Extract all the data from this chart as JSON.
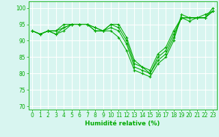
{
  "title": "",
  "xlabel": "Humidité relative (%)",
  "background_color": "#d8f5f0",
  "grid_color": "#ffffff",
  "line_color": "#00aa00",
  "marker": "+",
  "xlim": [
    -0.5,
    23.5
  ],
  "ylim": [
    69,
    102
  ],
  "yticks": [
    70,
    75,
    80,
    85,
    90,
    95,
    100
  ],
  "xticks": [
    0,
    1,
    2,
    3,
    4,
    5,
    6,
    7,
    8,
    9,
    10,
    11,
    12,
    13,
    14,
    15,
    16,
    17,
    18,
    19,
    20,
    21,
    22,
    23
  ],
  "series": [
    [
      93,
      92,
      93,
      92,
      93,
      95,
      95,
      95,
      93,
      93,
      93,
      91,
      87,
      81,
      80,
      79,
      83,
      85,
      90,
      98,
      97,
      97,
      97,
      100
    ],
    [
      93,
      92,
      93,
      92,
      94,
      95,
      95,
      95,
      93,
      93,
      94,
      93,
      89,
      82,
      81,
      80,
      84,
      86,
      91,
      97,
      96,
      97,
      97,
      99
    ],
    [
      93,
      92,
      93,
      93,
      94,
      95,
      95,
      95,
      94,
      93,
      95,
      94,
      90,
      83,
      82,
      80,
      85,
      87,
      92,
      97,
      97,
      97,
      97,
      99
    ],
    [
      93,
      92,
      93,
      93,
      95,
      95,
      95,
      95,
      94,
      93,
      95,
      95,
      91,
      84,
      82,
      81,
      86,
      88,
      93,
      97,
      97,
      97,
      98,
      99
    ]
  ]
}
